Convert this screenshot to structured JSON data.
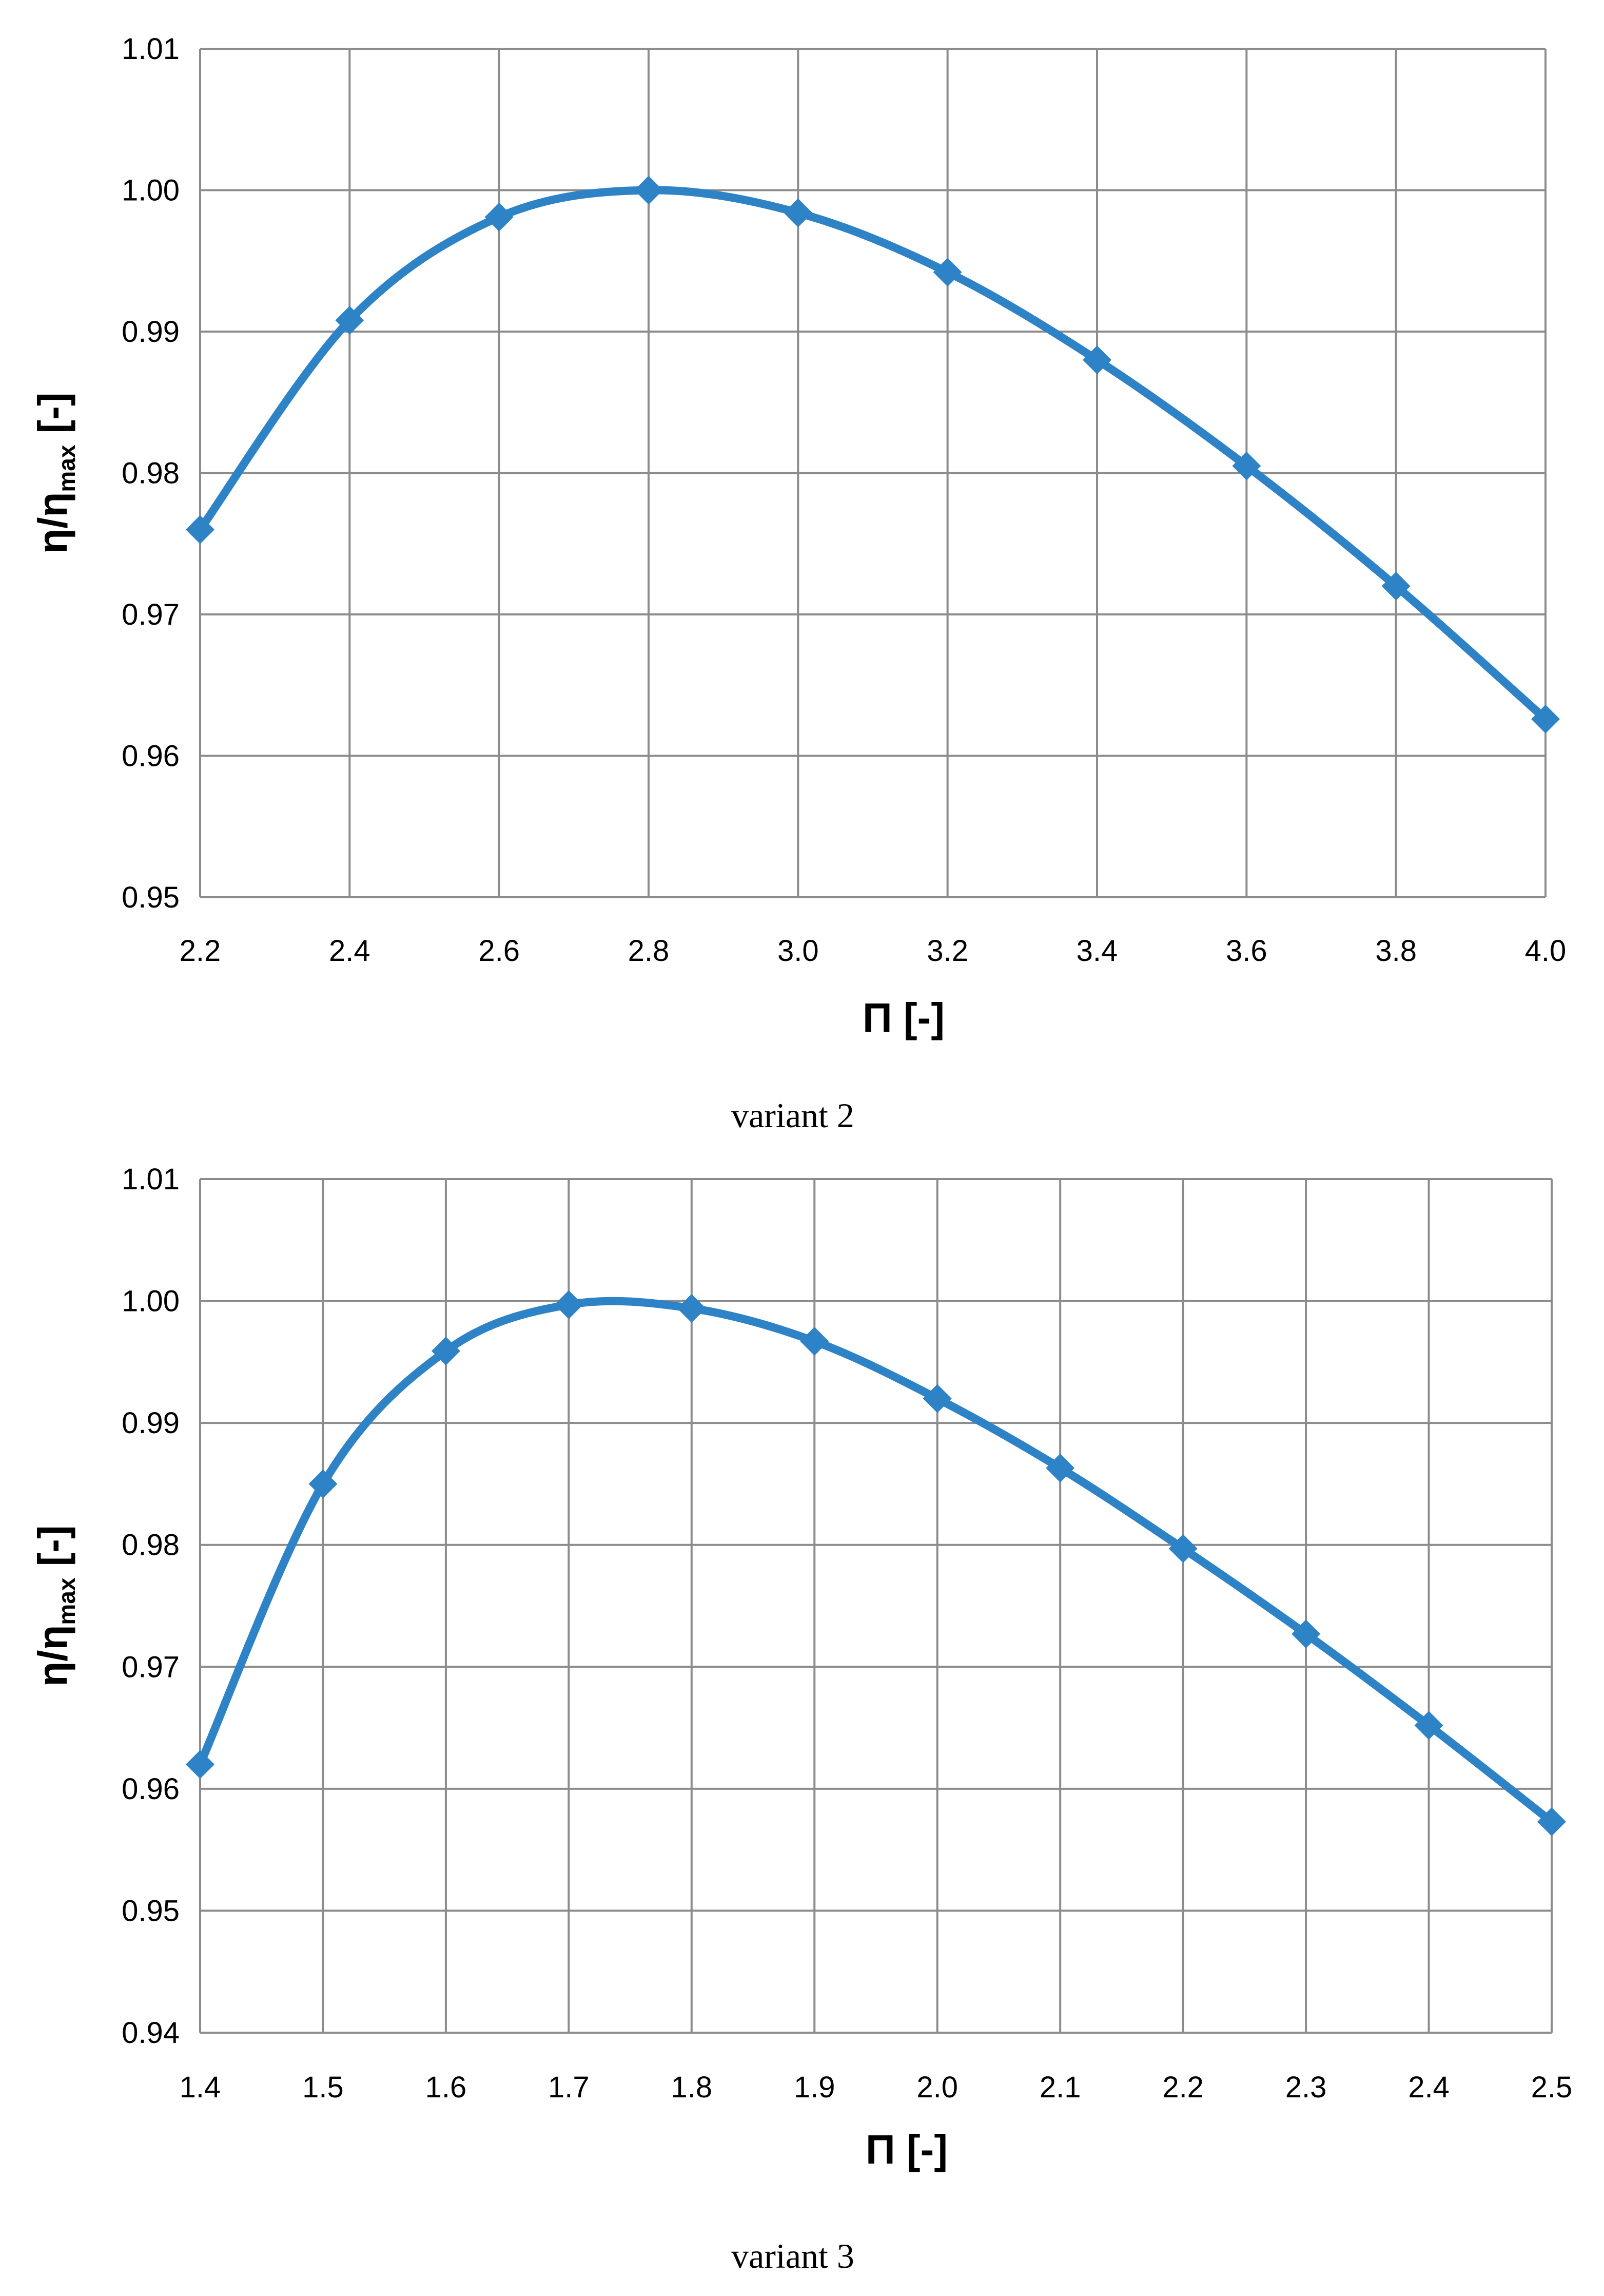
{
  "chart_data": [
    {
      "type": "line",
      "caption": "variant 2",
      "xlabel": "Π [-]",
      "ylabel": {
        "base": "η/η",
        "sub": "max",
        "suffix": " [-]"
      },
      "xlim": [
        2.2,
        4.0
      ],
      "ylim": [
        0.95,
        1.01
      ],
      "x_ticks": [
        "2.2",
        "2.4",
        "2.6",
        "2.8",
        "3.0",
        "3.2",
        "3.4",
        "3.6",
        "3.8",
        "4.0"
      ],
      "y_ticks": [
        "0.95",
        "0.96",
        "0.97",
        "0.98",
        "0.99",
        "1.00",
        "1.01"
      ],
      "grid": true,
      "marker": "diamond",
      "series": [
        {
          "color": "#2e83c6",
          "x": [
            2.2,
            2.4,
            2.6,
            2.8,
            3.0,
            3.2,
            3.4,
            3.6,
            3.8,
            4.0
          ],
          "values": [
            0.976,
            0.9908,
            0.9981,
            1.0,
            0.9984,
            0.9942,
            0.988,
            0.9805,
            0.972,
            0.9626
          ]
        }
      ]
    },
    {
      "type": "line",
      "caption": "variant 3",
      "xlabel": "Π [-]",
      "ylabel": {
        "base": "η/η",
        "sub": "max",
        "suffix": " [-]"
      },
      "xlim": [
        1.4,
        2.5
      ],
      "ylim": [
        0.94,
        1.01
      ],
      "x_ticks": [
        "1.4",
        "1.5",
        "1.6",
        "1.7",
        "1.8",
        "1.9",
        "2.0",
        "2.1",
        "2.2",
        "2.3",
        "2.4",
        "2.5"
      ],
      "y_ticks": [
        "0.94",
        "0.95",
        "0.96",
        "0.97",
        "0.98",
        "0.99",
        "1.00",
        "1.01"
      ],
      "grid": true,
      "marker": "diamond",
      "series": [
        {
          "color": "#2e83c6",
          "x": [
            1.4,
            1.5,
            1.6,
            1.7,
            1.8,
            1.9,
            2.0,
            2.1,
            2.2,
            2.3,
            2.4,
            2.5
          ],
          "values": [
            0.962,
            0.985,
            0.9959,
            0.9997,
            0.9994,
            0.9967,
            0.992,
            0.9863,
            0.9797,
            0.9727,
            0.9652,
            0.9573
          ]
        }
      ]
    }
  ]
}
